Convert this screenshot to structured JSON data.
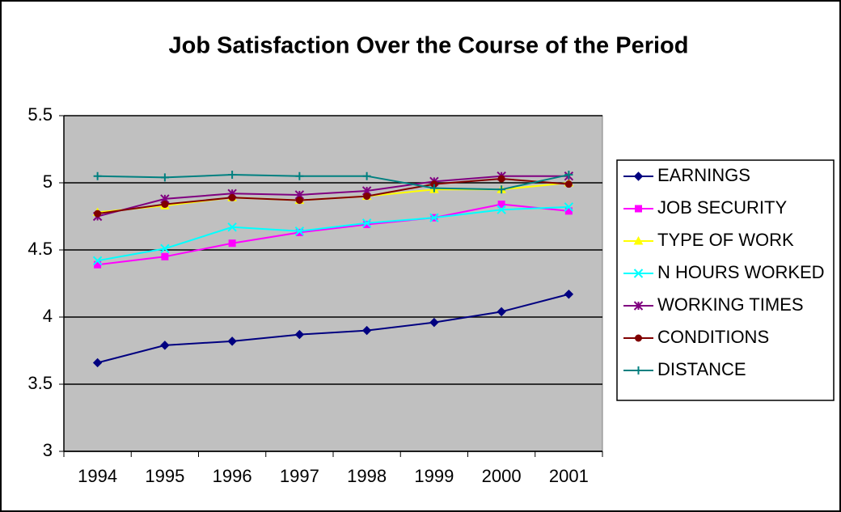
{
  "chart_data": {
    "type": "line",
    "title": "Job Satisfaction Over the Course of the Period",
    "categories": [
      "1994",
      "1995",
      "1996",
      "1997",
      "1998",
      "1999",
      "2000",
      "2001"
    ],
    "ylim": [
      3,
      5.5
    ],
    "yticks": [
      3,
      3.5,
      4,
      4.5,
      5,
      5.5
    ],
    "grid": true,
    "legend": "right",
    "series": [
      {
        "name": "EARNINGS",
        "color": "#000080",
        "marker": "diamond",
        "values": [
          3.66,
          3.79,
          3.82,
          3.87,
          3.9,
          3.96,
          4.04,
          4.17
        ]
      },
      {
        "name": "JOB SECURITY",
        "color": "#ff00ff",
        "marker": "square",
        "values": [
          4.39,
          4.45,
          4.55,
          4.63,
          4.69,
          4.74,
          4.84,
          4.79
        ]
      },
      {
        "name": "TYPE OF WORK",
        "color": "#ffff00",
        "marker": "triangle",
        "values": [
          4.78,
          4.83,
          4.89,
          4.87,
          4.9,
          4.95,
          4.95,
          5.0
        ]
      },
      {
        "name": "N HOURS WORKED",
        "color": "#00ffff",
        "marker": "x",
        "values": [
          4.42,
          4.51,
          4.67,
          4.64,
          4.7,
          4.74,
          4.8,
          4.82
        ]
      },
      {
        "name": "WORKING TIMES",
        "color": "#800080",
        "marker": "star",
        "values": [
          4.75,
          4.88,
          4.92,
          4.91,
          4.94,
          5.01,
          5.05,
          5.05
        ]
      },
      {
        "name": "CONDITIONS",
        "color": "#800000",
        "marker": "circle",
        "values": [
          4.77,
          4.84,
          4.89,
          4.87,
          4.9,
          4.99,
          5.03,
          4.99
        ]
      },
      {
        "name": "DISTANCE",
        "color": "#008080",
        "marker": "plus",
        "values": [
          5.05,
          5.04,
          5.06,
          5.05,
          5.05,
          4.96,
          4.95,
          5.06
        ]
      }
    ]
  }
}
